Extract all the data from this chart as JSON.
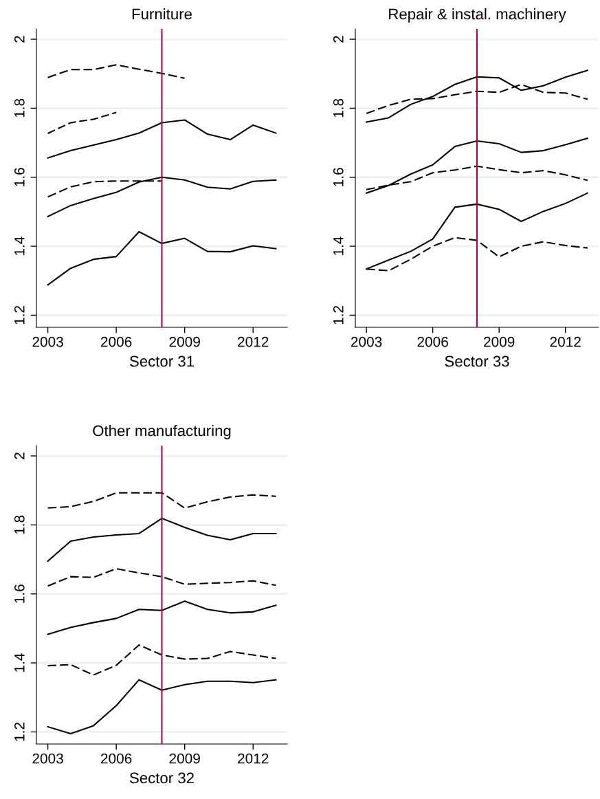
{
  "chart_data": [
    {
      "type": "line",
      "title": "Furniture",
      "xlabel": "Sector 31",
      "x": [
        2003,
        2004,
        2005,
        2006,
        2007,
        2008,
        2009,
        2010,
        2011,
        2012,
        2013
      ],
      "xlim": [
        2002.5,
        2013.5
      ],
      "xticks": [
        2003,
        2006,
        2009,
        2012
      ],
      "ylim": [
        1.165,
        2.03
      ],
      "yticks": [
        1.2,
        1.4,
        1.6,
        1.8,
        2
      ],
      "grid": "y",
      "legend": false,
      "marker": "none",
      "ref_lines": [
        {
          "axis": "x",
          "value": 2008,
          "color": "#c4002f"
        }
      ],
      "series": [
        {
          "color": "#000000",
          "line_style": "dashed",
          "values": [
            1.889,
            1.912,
            1.912,
            1.926,
            1.913,
            1.901,
            1.887,
            null,
            null,
            null,
            null
          ]
        },
        {
          "color": "#000000",
          "line_style": "dashed",
          "values": [
            1.727,
            1.758,
            1.768,
            1.788,
            null,
            null,
            null,
            null,
            null,
            null,
            null
          ]
        },
        {
          "color": "#000000",
          "line_style": "solid",
          "values": [
            1.656,
            1.677,
            1.693,
            1.709,
            1.728,
            1.758,
            1.766,
            1.725,
            1.709,
            1.751,
            1.728
          ]
        },
        {
          "color": "#000000",
          "line_style": "dashed",
          "values": [
            1.543,
            1.572,
            1.587,
            1.589,
            1.589,
            1.589,
            null,
            null,
            null,
            null,
            null
          ]
        },
        {
          "color": "#000000",
          "line_style": "solid",
          "values": [
            1.486,
            1.518,
            1.538,
            1.556,
            1.586,
            1.6,
            1.592,
            1.571,
            1.566,
            1.588,
            1.592
          ]
        },
        {
          "color": "#000000",
          "line_style": "solid",
          "values": [
            1.288,
            1.336,
            1.362,
            1.37,
            1.442,
            1.408,
            1.423,
            1.385,
            1.384,
            1.401,
            1.393
          ]
        }
      ]
    },
    {
      "type": "line",
      "title": "Repair & instal. machinery",
      "xlabel": "Sector 33",
      "x": [
        2003,
        2004,
        2005,
        2006,
        2007,
        2008,
        2009,
        2010,
        2011,
        2012,
        2013
      ],
      "xlim": [
        2002.5,
        2013.5
      ],
      "xticks": [
        2003,
        2006,
        2009,
        2012
      ],
      "ylim": [
        1.165,
        2.03
      ],
      "yticks": [
        1.2,
        1.4,
        1.6,
        1.8,
        2
      ],
      "grid": "y",
      "legend": false,
      "marker": "none",
      "ref_lines": [
        {
          "axis": "x",
          "value": 2008,
          "color": "#c4002f"
        }
      ],
      "series": [
        {
          "color": "#000000",
          "line_style": "solid",
          "values": [
            1.76,
            1.772,
            1.811,
            1.834,
            1.869,
            1.891,
            1.888,
            1.852,
            1.865,
            1.89,
            1.91
          ]
        },
        {
          "color": "#000000",
          "line_style": "dashed",
          "values": [
            1.785,
            1.808,
            1.826,
            1.828,
            1.839,
            1.849,
            1.846,
            1.869,
            1.846,
            1.844,
            1.826
          ]
        },
        {
          "color": "#000000",
          "line_style": "solid",
          "values": [
            1.554,
            1.576,
            1.609,
            1.636,
            1.689,
            1.705,
            1.697,
            1.672,
            1.677,
            1.694,
            1.713
          ]
        },
        {
          "color": "#000000",
          "line_style": "dashed",
          "values": [
            1.564,
            1.577,
            1.587,
            1.613,
            1.621,
            1.632,
            1.622,
            1.613,
            1.619,
            1.607,
            1.591
          ]
        },
        {
          "color": "#000000",
          "line_style": "solid",
          "values": [
            1.334,
            1.36,
            1.385,
            1.421,
            1.513,
            1.522,
            1.507,
            1.472,
            1.501,
            1.524,
            1.554
          ]
        },
        {
          "color": "#000000",
          "line_style": "dashed",
          "values": [
            1.334,
            1.329,
            1.362,
            1.4,
            1.425,
            1.417,
            1.369,
            1.4,
            1.413,
            1.402,
            1.395
          ]
        }
      ]
    },
    {
      "type": "line",
      "title": "Other manufacturing",
      "xlabel": "Sector 32",
      "x": [
        2003,
        2004,
        2005,
        2006,
        2007,
        2008,
        2009,
        2010,
        2011,
        2012,
        2013
      ],
      "xlim": [
        2002.5,
        2013.5
      ],
      "xticks": [
        2003,
        2006,
        2009,
        2012
      ],
      "ylim": [
        1.165,
        2.03
      ],
      "yticks": [
        1.2,
        1.4,
        1.6,
        1.8,
        2
      ],
      "grid": "y",
      "legend": false,
      "marker": "none",
      "ref_lines": [
        {
          "axis": "x",
          "value": 2008,
          "color": "#c4002f"
        }
      ],
      "series": [
        {
          "color": "#000000",
          "line_style": "dashed",
          "values": [
            1.849,
            1.853,
            1.868,
            1.893,
            1.893,
            1.893,
            1.849,
            1.867,
            1.881,
            1.887,
            1.883
          ]
        },
        {
          "color": "#000000",
          "line_style": "solid",
          "values": [
            1.695,
            1.753,
            1.765,
            1.771,
            1.775,
            1.819,
            1.793,
            1.77,
            1.757,
            1.775,
            1.775
          ]
        },
        {
          "color": "#000000",
          "line_style": "dashed",
          "values": [
            1.623,
            1.65,
            1.648,
            1.673,
            1.661,
            1.65,
            1.628,
            1.631,
            1.633,
            1.638,
            1.625
          ]
        },
        {
          "color": "#000000",
          "line_style": "solid",
          "values": [
            1.483,
            1.503,
            1.517,
            1.529,
            1.555,
            1.552,
            1.579,
            1.555,
            1.545,
            1.548,
            1.567
          ]
        },
        {
          "color": "#000000",
          "line_style": "dashed",
          "values": [
            1.392,
            1.395,
            1.365,
            1.393,
            1.452,
            1.423,
            1.411,
            1.413,
            1.433,
            1.423,
            1.413
          ]
        },
        {
          "color": "#000000",
          "line_style": "solid",
          "values": [
            1.215,
            1.195,
            1.218,
            1.276,
            1.351,
            1.321,
            1.337,
            1.347,
            1.347,
            1.343,
            1.351
          ]
        }
      ]
    }
  ]
}
